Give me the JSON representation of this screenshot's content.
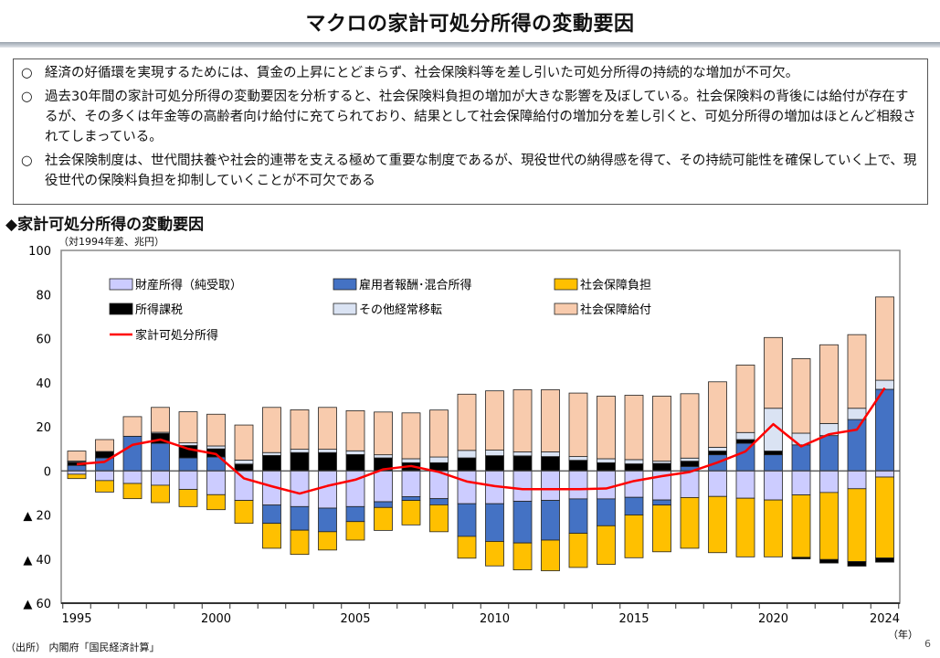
{
  "title": "マクロの家計可処分所得の変動要因",
  "summary_points": [
    {
      "mark": "○",
      "text": "経済の好循環を実現するためには、賃金の上昇にとどまらず、社会保険料等を差し引いた可処分所得の持続的な増加が不可欠。"
    },
    {
      "mark": "○",
      "text": "過去30年間の家計可処分所得の変動要因を分析すると、社会保険料負担の増加が大きな影響を及ぼしている。社会保険料の背後には給付が存在するが、その多くは年金等の高齢者向け給付に充てられており、結果として社会保障給付の増加分を差し引くと、可処分所得の増加はほとんど相殺されてしまっている。"
    },
    {
      "mark": "○",
      "text": "社会保険制度は、世代間扶養や社会的連帯を支える極めて重要な制度であるが、現役世代の納得感を得て、その持続可能性を確保していく上で、現役世代の保険料負担を抑制していくことが不可欠である"
    }
  ],
  "chart_heading": "◆家計可処分所得の変動要因",
  "unit_label": "（対1994年差、兆円）",
  "source": "（出所） 内閣府「国民経済計算」",
  "page_number": "6",
  "chart_data": {
    "type": "bar",
    "stacked": true,
    "title": "",
    "xlabel": "（年）",
    "ylabel": "",
    "ylim": [
      -60,
      100
    ],
    "yticks": [
      100,
      80,
      60,
      40,
      20,
      0,
      -20,
      -40,
      -60
    ],
    "ytick_labels": [
      "100",
      "80",
      "60",
      "40",
      "20",
      "0",
      "▲ 20",
      "▲ 40",
      "▲ 60"
    ],
    "xtick_labels": [
      "1995",
      "2000",
      "2005",
      "2010",
      "2015",
      "2020",
      "2024"
    ],
    "legend_position": "top-left",
    "grid": false,
    "x": [
      1995,
      1996,
      1997,
      1998,
      1999,
      2000,
      2001,
      2002,
      2003,
      2004,
      2005,
      2006,
      2007,
      2008,
      2009,
      2010,
      2011,
      2012,
      2013,
      2014,
      2015,
      2016,
      2017,
      2018,
      2019,
      2020,
      2021,
      2022,
      2023,
      2024
    ],
    "series": [
      {
        "name": "財産所得（純受取）",
        "color": "#ccccff",
        "kind": "bar",
        "values": [
          -1.5,
          -4.4,
          -5.7,
          -6.5,
          -8.4,
          -10.8,
          -13.4,
          -15.5,
          -16.2,
          -16.9,
          -16.2,
          -14,
          -11.7,
          -12.6,
          -14.9,
          -14.9,
          -13.8,
          -13.4,
          -12.7,
          -12.7,
          -12,
          -13.2,
          -12.1,
          -11.6,
          -12.4,
          -13.2,
          -10.9,
          -9.8,
          -8.1,
          -2.8
        ]
      },
      {
        "name": "雇用者報酬･混合所得",
        "color": "#4472c4",
        "kind": "bar",
        "values": [
          2.5,
          5.9,
          15.7,
          12.5,
          5.9,
          6.3,
          0,
          -8.3,
          -10.7,
          -10.7,
          -6.8,
          -2.6,
          -1.7,
          -2.8,
          -14.8,
          -17.1,
          -18.9,
          -18,
          -15.6,
          -12.2,
          -8,
          -2.3,
          2,
          7.3,
          12.5,
          7.3,
          11.8,
          16,
          23.3,
          37
        ]
      },
      {
        "name": "社会保障負担",
        "color": "#ffc000",
        "kind": "bar",
        "values": [
          -2,
          -5.2,
          -6.9,
          -7.9,
          -7.8,
          -6.8,
          -10.4,
          -11.3,
          -11,
          -8.3,
          -8.4,
          -10.4,
          -11.1,
          -12.2,
          -9.9,
          -11.1,
          -12.2,
          -13.9,
          -15.5,
          -17.5,
          -19.4,
          -21.2,
          -23,
          -25.5,
          -26.6,
          -25.8,
          -28.3,
          -30.4,
          -33,
          -36.7
        ]
      },
      {
        "name": "所得課税",
        "color": "#000000",
        "kind": "bar",
        "values": [
          1.5,
          2.9,
          0,
          4.5,
          5.6,
          3.7,
          3.1,
          7,
          8.3,
          8.3,
          7.4,
          5.9,
          3.7,
          3.7,
          5.9,
          6.9,
          6.8,
          6.5,
          4.8,
          3.7,
          3.2,
          3.4,
          2.4,
          1.7,
          1.7,
          1.7,
          -0.7,
          -1.6,
          -2.1,
          -1.9
        ]
      },
      {
        "name": "その他経常移転",
        "color": "#dae3f3",
        "kind": "bar",
        "values": [
          0.5,
          0,
          0,
          0.5,
          1.2,
          1.3,
          1.8,
          1.3,
          1.5,
          1.5,
          1.7,
          1.4,
          1.8,
          2.6,
          3.4,
          2.5,
          1.8,
          2.1,
          1.7,
          1.8,
          1.9,
          1,
          1.4,
          1.7,
          3.2,
          19.4,
          5.3,
          5.5,
          5.1,
          4.1
        ]
      },
      {
        "name": "社会保障給付",
        "color": "#f8cbad",
        "kind": "bar",
        "values": [
          4.5,
          5.4,
          8.9,
          11.3,
          14.1,
          14.4,
          15.9,
          20.5,
          17.9,
          19,
          18.2,
          19.4,
          20.8,
          21.3,
          25.5,
          26.9,
          28.2,
          28.2,
          28.8,
          28.4,
          29.2,
          29.5,
          29.2,
          29.7,
          30.6,
          32.1,
          33.8,
          35.7,
          33.4,
          37.8
        ]
      },
      {
        "name": "家計可処分所得",
        "color": "#ff0000",
        "kind": "line",
        "values": [
          3,
          4.1,
          11.8,
          14.2,
          10,
          7.6,
          -3.4,
          -7,
          -10.3,
          -6.8,
          -4,
          0.7,
          2.2,
          -0.5,
          -4.8,
          -6.9,
          -8.3,
          -8.3,
          -8.3,
          -8,
          -4.6,
          -2.4,
          -0.5,
          3.8,
          8.8,
          21.2,
          11.1,
          16.6,
          18.7,
          37.6
        ]
      }
    ],
    "legend_order": [
      "財産所得（純受取）",
      "雇用者報酬･混合所得",
      "社会保障負担",
      "所得課税",
      "その他経常移転",
      "社会保障給付",
      "家計可処分所得"
    ]
  }
}
